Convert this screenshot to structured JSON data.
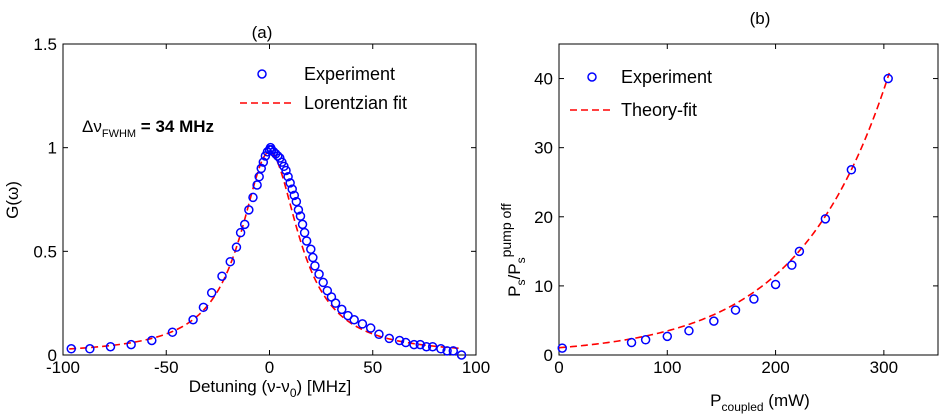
{
  "chart_data": [
    {
      "type": "scatter",
      "panel_label": "(a)",
      "xlabel": "Detuning (ν-ν",
      "xlabel_sub": "0",
      "xlabel_tail": ") [MHz]",
      "ylabel": "G(ω)",
      "xlim": [
        -100,
        100
      ],
      "ylim": [
        0,
        1.5
      ],
      "xticks": [
        -100,
        -50,
        0,
        50,
        100
      ],
      "xtick_labels": [
        "-100",
        "-50",
        "0",
        "50",
        "100"
      ],
      "yticks": [
        0,
        0.5,
        1,
        1.5
      ],
      "ytick_labels": [
        "0",
        "0.5",
        "1",
        "1.5"
      ],
      "annotation": {
        "prefix": "Δν",
        "sub": "FWHM",
        "suffix": " = 34 MHz"
      },
      "legend_position": "top-right",
      "series": [
        {
          "name": "Experiment",
          "kind": "markers",
          "color": "#0000ff",
          "points": [
            [
              -96,
              0.03
            ],
            [
              -87,
              0.03
            ],
            [
              -77,
              0.04
            ],
            [
              -67,
              0.05
            ],
            [
              -57,
              0.07
            ],
            [
              -47,
              0.11
            ],
            [
              -37,
              0.17
            ],
            [
              -32,
              0.23
            ],
            [
              -28,
              0.3
            ],
            [
              -23,
              0.38
            ],
            [
              -19,
              0.45
            ],
            [
              -16,
              0.52
            ],
            [
              -14,
              0.59
            ],
            [
              -12,
              0.63
            ],
            [
              -10,
              0.7
            ],
            [
              -8,
              0.76
            ],
            [
              -6,
              0.82
            ],
            [
              -5,
              0.86
            ],
            [
              -4,
              0.9
            ],
            [
              -3,
              0.93
            ],
            [
              -2,
              0.96
            ],
            [
              -1,
              0.98
            ],
            [
              0,
              0.99
            ],
            [
              0.5,
              1.0
            ],
            [
              1,
              0.99
            ],
            [
              2,
              0.98
            ],
            [
              3,
              0.97
            ],
            [
              4,
              0.96
            ],
            [
              5,
              0.95
            ],
            [
              6,
              0.93
            ],
            [
              7,
              0.91
            ],
            [
              8,
              0.89
            ],
            [
              9,
              0.86
            ],
            [
              10,
              0.83
            ],
            [
              11,
              0.8
            ],
            [
              12,
              0.77
            ],
            [
              13,
              0.74
            ],
            [
              14,
              0.7
            ],
            [
              15,
              0.67
            ],
            [
              16,
              0.63
            ],
            [
              17,
              0.59
            ],
            [
              18,
              0.55
            ],
            [
              20,
              0.51
            ],
            [
              21,
              0.47
            ],
            [
              22,
              0.43
            ],
            [
              24,
              0.39
            ],
            [
              26,
              0.35
            ],
            [
              28,
              0.31
            ],
            [
              30,
              0.28
            ],
            [
              32,
              0.25
            ],
            [
              35,
              0.22
            ],
            [
              38,
              0.19
            ],
            [
              41,
              0.17
            ],
            [
              45,
              0.15
            ],
            [
              49,
              0.13
            ],
            [
              53,
              0.1
            ],
            [
              58,
              0.08
            ],
            [
              63,
              0.07
            ],
            [
              66,
              0.06
            ],
            [
              70,
              0.05
            ],
            [
              73,
              0.05
            ],
            [
              76,
              0.04
            ],
            [
              79,
              0.04
            ],
            [
              83,
              0.03
            ],
            [
              86,
              0.02
            ],
            [
              89,
              0.02
            ],
            [
              93,
              0.0
            ]
          ]
        },
        {
          "name": "Lorentzian fit",
          "kind": "dashed-line",
          "color": "#ff0000",
          "function": "lorentzian",
          "amplitude": 0.98,
          "center": 0,
          "fwhm": 34,
          "x_range": [
            -97,
            93
          ]
        }
      ]
    },
    {
      "type": "scatter",
      "panel_label": "(b)",
      "xlabel": "P",
      "xlabel_sub": "coupled",
      "xlabel_tail": " (mW)",
      "ylabel_main": "P",
      "ylabel_sub1": "s",
      "ylabel_slash": "/P",
      "ylabel_sub2": "s",
      "ylabel_sup": "pump off",
      "xlim": [
        0,
        350
      ],
      "ylim": [
        0,
        45
      ],
      "xticks": [
        0,
        100,
        200,
        300
      ],
      "xtick_labels": [
        "0",
        "100",
        "200",
        "300"
      ],
      "yticks": [
        0,
        10,
        20,
        30,
        40
      ],
      "ytick_labels": [
        "0",
        "10",
        "20",
        "30",
        "40"
      ],
      "legend_position": "top-left",
      "series": [
        {
          "name": "Experiment",
          "kind": "markers",
          "color": "#0000ff",
          "points": [
            [
              3,
              1.0
            ],
            [
              67,
              1.8
            ],
            [
              80,
              2.2
            ],
            [
              100,
              2.7
            ],
            [
              120,
              3.5
            ],
            [
              143,
              4.9
            ],
            [
              163,
              6.5
            ],
            [
              180,
              8.1
            ],
            [
              200,
              10.2
            ],
            [
              215,
              13.0
            ],
            [
              222,
              15.0
            ],
            [
              246,
              19.7
            ],
            [
              270,
              26.8
            ],
            [
              304,
              40.0
            ]
          ]
        },
        {
          "name": "Theory-fit",
          "kind": "dashed-line",
          "color": "#ff0000",
          "function": "exponential",
          "a": 1.05,
          "b": 0.012,
          "x_range": [
            0,
            305
          ]
        }
      ]
    }
  ]
}
